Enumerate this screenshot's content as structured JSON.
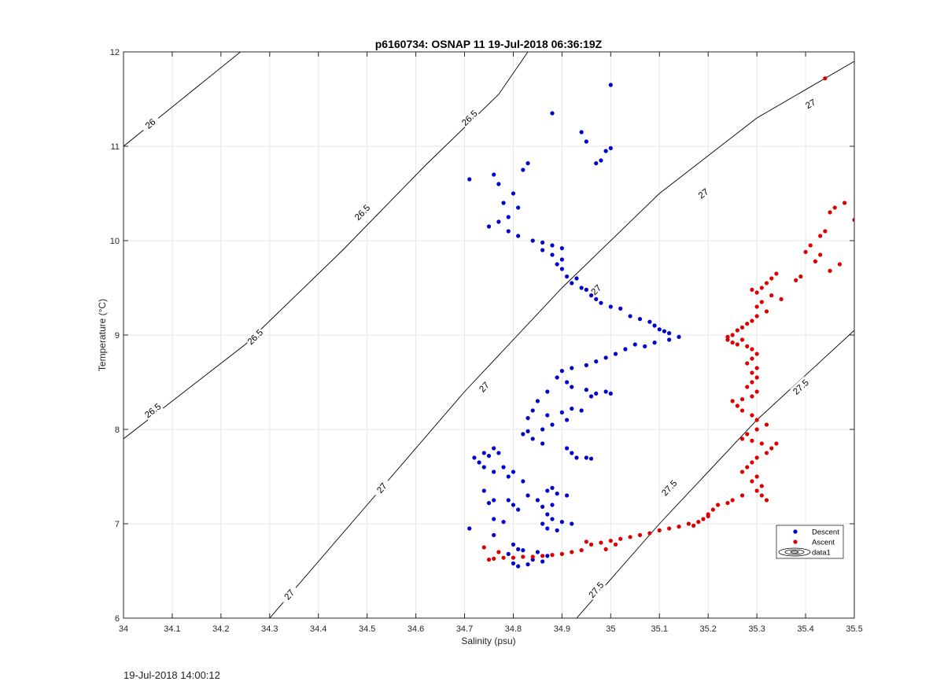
{
  "footer": {
    "timestamp": "19-Jul-2018 14:00:12"
  },
  "chart_data": {
    "type": "scatter",
    "title": "p6160734: OSNAP 11 19-Jul-2018 06:36:19Z",
    "xlabel": "Salinity (psu)",
    "ylabel": "Temperature (°C)",
    "xlim": [
      34,
      35.5
    ],
    "ylim": [
      6,
      12
    ],
    "xticks": [
      34,
      34.1,
      34.2,
      34.3,
      34.4,
      34.5,
      34.6,
      34.7,
      34.8,
      34.9,
      35,
      35.1,
      35.2,
      35.3,
      35.4,
      35.5
    ],
    "xtick_labels": [
      "34",
      "34.1",
      "34.2",
      "34.3",
      "34.4",
      "34.5",
      "34.6",
      "34.7",
      "34.8",
      "34.9",
      "35",
      "35.1",
      "35.2",
      "35.3",
      "35.4",
      "35.5"
    ],
    "yticks": [
      6,
      7,
      8,
      9,
      10,
      11,
      12
    ],
    "ytick_labels": [
      "6",
      "7",
      "8",
      "9",
      "10",
      "11",
      "12"
    ],
    "grid": true,
    "legend": {
      "placement": "lower-right",
      "entries": [
        "Descent",
        "Ascent",
        "data1"
      ]
    },
    "contours": [
      {
        "level": "26",
        "points": [
          [
            34.0,
            11.0
          ],
          [
            34.24,
            12.0
          ]
        ],
        "labels": [
          {
            "x": 34.055,
            "y": 11.24
          }
        ]
      },
      {
        "level": "26.5",
        "points": [
          [
            34.0,
            7.9
          ],
          [
            34.25,
            8.9
          ],
          [
            34.45,
            9.9
          ],
          [
            34.62,
            10.8
          ],
          [
            34.77,
            11.55
          ],
          [
            34.83,
            12.0
          ]
        ],
        "labels": [
          {
            "x": 34.06,
            "y": 8.2
          },
          {
            "x": 34.27,
            "y": 8.98
          },
          {
            "x": 34.49,
            "y": 10.3
          },
          {
            "x": 34.71,
            "y": 11.3
          }
        ]
      },
      {
        "level": "27",
        "points": [
          [
            34.3,
            6.0
          ],
          [
            34.5,
            7.2
          ],
          [
            34.7,
            8.4
          ],
          [
            34.9,
            9.5
          ],
          [
            35.1,
            10.5
          ],
          [
            35.3,
            11.3
          ],
          [
            35.5,
            11.9
          ]
        ],
        "labels": [
          {
            "x": 34.34,
            "y": 6.25
          },
          {
            "x": 34.53,
            "y": 7.38
          },
          {
            "x": 34.74,
            "y": 8.45
          },
          {
            "x": 34.97,
            "y": 9.48
          },
          {
            "x": 35.19,
            "y": 10.5
          },
          {
            "x": 35.41,
            "y": 11.45
          }
        ]
      },
      {
        "level": "27.5",
        "points": [
          [
            34.93,
            6.0
          ],
          [
            35.1,
            7.0
          ],
          [
            35.3,
            8.1
          ],
          [
            35.5,
            9.05
          ]
        ],
        "labels": [
          {
            "x": 34.97,
            "y": 6.3
          },
          {
            "x": 35.12,
            "y": 7.38
          },
          {
            "x": 35.39,
            "y": 8.45
          }
        ]
      }
    ],
    "series": [
      {
        "name": "Descent",
        "color": "#0000cc",
        "points": [
          [
            34.88,
            11.35
          ],
          [
            35.0,
            11.65
          ],
          [
            34.94,
            11.15
          ],
          [
            34.95,
            11.05
          ],
          [
            34.97,
            10.82
          ],
          [
            34.98,
            10.85
          ],
          [
            34.99,
            10.95
          ],
          [
            35.0,
            10.98
          ],
          [
            34.71,
            10.65
          ],
          [
            34.76,
            10.7
          ],
          [
            34.82,
            10.75
          ],
          [
            34.83,
            10.82
          ],
          [
            34.77,
            10.6
          ],
          [
            34.8,
            10.5
          ],
          [
            34.78,
            10.4
          ],
          [
            34.81,
            10.35
          ],
          [
            34.79,
            10.25
          ],
          [
            34.75,
            10.15
          ],
          [
            34.77,
            10.2
          ],
          [
            34.79,
            10.1
          ],
          [
            34.81,
            10.05
          ],
          [
            34.84,
            10.0
          ],
          [
            34.86,
            9.98
          ],
          [
            34.88,
            9.95
          ],
          [
            34.9,
            9.92
          ],
          [
            34.86,
            9.9
          ],
          [
            34.88,
            9.85
          ],
          [
            34.9,
            9.8
          ],
          [
            34.89,
            9.75
          ],
          [
            34.9,
            9.7
          ],
          [
            34.91,
            9.62
          ],
          [
            34.93,
            9.6
          ],
          [
            34.92,
            9.55
          ],
          [
            34.94,
            9.5
          ],
          [
            34.95,
            9.48
          ],
          [
            34.96,
            9.42
          ],
          [
            34.97,
            9.38
          ],
          [
            34.98,
            9.34
          ],
          [
            35.0,
            9.3
          ],
          [
            35.02,
            9.28
          ],
          [
            35.04,
            9.2
          ],
          [
            35.06,
            9.17
          ],
          [
            35.08,
            9.14
          ],
          [
            35.09,
            9.1
          ],
          [
            35.1,
            9.06
          ],
          [
            35.11,
            9.04
          ],
          [
            35.12,
            9.02
          ],
          [
            35.14,
            8.98
          ],
          [
            35.12,
            8.95
          ],
          [
            35.09,
            8.92
          ],
          [
            35.07,
            8.88
          ],
          [
            35.05,
            8.9
          ],
          [
            35.03,
            8.85
          ],
          [
            35.01,
            8.8
          ],
          [
            34.99,
            8.76
          ],
          [
            34.97,
            8.72
          ],
          [
            34.95,
            8.68
          ],
          [
            34.92,
            8.65
          ],
          [
            34.9,
            8.62
          ],
          [
            34.89,
            8.55
          ],
          [
            34.91,
            8.5
          ],
          [
            34.92,
            8.45
          ],
          [
            34.95,
            8.42
          ],
          [
            34.96,
            8.35
          ],
          [
            34.97,
            8.38
          ],
          [
            34.99,
            8.4
          ],
          [
            35.0,
            8.38
          ],
          [
            34.87,
            8.4
          ],
          [
            34.85,
            8.3
          ],
          [
            34.84,
            8.2
          ],
          [
            34.83,
            8.12
          ],
          [
            34.87,
            8.15
          ],
          [
            34.9,
            8.18
          ],
          [
            34.92,
            8.22
          ],
          [
            34.94,
            8.2
          ],
          [
            34.91,
            8.1
          ],
          [
            34.88,
            8.05
          ],
          [
            34.86,
            8.0
          ],
          [
            34.83,
            7.98
          ],
          [
            34.82,
            7.95
          ],
          [
            34.84,
            7.9
          ],
          [
            34.86,
            7.85
          ],
          [
            34.92,
            7.75
          ],
          [
            34.91,
            7.8
          ],
          [
            34.93,
            7.7
          ],
          [
            34.95,
            7.7
          ],
          [
            34.96,
            7.69
          ],
          [
            34.74,
            7.75
          ],
          [
            34.75,
            7.72
          ],
          [
            34.73,
            7.65
          ],
          [
            34.74,
            7.6
          ],
          [
            34.72,
            7.7
          ],
          [
            34.76,
            7.8
          ],
          [
            34.77,
            7.75
          ],
          [
            34.78,
            7.6
          ],
          [
            34.8,
            7.55
          ],
          [
            34.79,
            7.5
          ],
          [
            34.76,
            7.55
          ],
          [
            34.82,
            7.45
          ],
          [
            34.74,
            7.35
          ],
          [
            34.76,
            7.25
          ],
          [
            34.75,
            7.22
          ],
          [
            34.83,
            7.3
          ],
          [
            34.87,
            7.35
          ],
          [
            34.88,
            7.38
          ],
          [
            34.89,
            7.32
          ],
          [
            34.91,
            7.3
          ],
          [
            34.79,
            7.25
          ],
          [
            34.8,
            7.2
          ],
          [
            34.85,
            7.25
          ],
          [
            34.81,
            7.15
          ],
          [
            34.86,
            7.18
          ],
          [
            34.88,
            7.2
          ],
          [
            34.87,
            7.1
          ],
          [
            34.76,
            7.05
          ],
          [
            34.78,
            7.02
          ],
          [
            34.86,
            7.0
          ],
          [
            34.88,
            7.05
          ],
          [
            34.9,
            7.02
          ],
          [
            34.92,
            7.0
          ],
          [
            34.87,
            6.95
          ],
          [
            34.89,
            6.93
          ],
          [
            34.71,
            6.95
          ],
          [
            34.76,
            6.88
          ],
          [
            34.8,
            6.78
          ],
          [
            34.81,
            6.73
          ],
          [
            34.79,
            6.68
          ],
          [
            34.82,
            6.72
          ],
          [
            34.85,
            6.7
          ],
          [
            34.87,
            6.66
          ],
          [
            34.84,
            6.62
          ],
          [
            34.86,
            6.6
          ],
          [
            34.8,
            6.58
          ],
          [
            34.83,
            6.57
          ],
          [
            34.81,
            6.55
          ]
        ]
      },
      {
        "name": "Ascent",
        "color": "#dd0000",
        "points": [
          [
            35.44,
            11.72
          ],
          [
            35.48,
            10.4
          ],
          [
            35.46,
            10.35
          ],
          [
            35.45,
            10.3
          ],
          [
            35.5,
            10.22
          ],
          [
            35.44,
            10.1
          ],
          [
            35.43,
            10.05
          ],
          [
            35.41,
            9.95
          ],
          [
            35.4,
            9.88
          ],
          [
            35.43,
            9.85
          ],
          [
            35.42,
            9.78
          ],
          [
            35.47,
            9.75
          ],
          [
            35.45,
            9.68
          ],
          [
            35.39,
            9.62
          ],
          [
            35.38,
            9.58
          ],
          [
            35.34,
            9.65
          ],
          [
            35.33,
            9.6
          ],
          [
            35.32,
            9.55
          ],
          [
            35.31,
            9.5
          ],
          [
            35.29,
            9.48
          ],
          [
            35.3,
            9.45
          ],
          [
            35.33,
            9.42
          ],
          [
            35.35,
            9.38
          ],
          [
            35.31,
            9.35
          ],
          [
            35.3,
            9.3
          ],
          [
            35.32,
            9.25
          ],
          [
            35.3,
            9.2
          ],
          [
            35.29,
            9.15
          ],
          [
            35.28,
            9.12
          ],
          [
            35.27,
            9.08
          ],
          [
            35.26,
            9.05
          ],
          [
            35.25,
            9.0
          ],
          [
            35.24,
            8.98
          ],
          [
            35.24,
            8.95
          ],
          [
            35.25,
            8.92
          ],
          [
            35.26,
            8.9
          ],
          [
            35.27,
            8.95
          ],
          [
            35.28,
            8.88
          ],
          [
            35.29,
            8.85
          ],
          [
            35.3,
            8.8
          ],
          [
            35.29,
            8.75
          ],
          [
            35.28,
            8.7
          ],
          [
            35.3,
            8.65
          ],
          [
            35.29,
            8.6
          ],
          [
            35.3,
            8.55
          ],
          [
            35.29,
            8.5
          ],
          [
            35.28,
            8.45
          ],
          [
            35.3,
            8.4
          ],
          [
            35.29,
            8.35
          ],
          [
            35.27,
            8.32
          ],
          [
            35.25,
            8.3
          ],
          [
            35.26,
            8.25
          ],
          [
            35.27,
            8.2
          ],
          [
            35.29,
            8.15
          ],
          [
            35.3,
            8.1
          ],
          [
            35.32,
            8.05
          ],
          [
            35.3,
            8.0
          ],
          [
            35.28,
            7.95
          ],
          [
            35.27,
            7.9
          ],
          [
            35.29,
            7.88
          ],
          [
            35.31,
            7.85
          ],
          [
            35.34,
            7.85
          ],
          [
            35.33,
            7.8
          ],
          [
            35.32,
            7.75
          ],
          [
            35.3,
            7.7
          ],
          [
            35.29,
            7.65
          ],
          [
            35.28,
            7.6
          ],
          [
            35.27,
            7.55
          ],
          [
            35.3,
            7.5
          ],
          [
            35.29,
            7.45
          ],
          [
            35.31,
            7.4
          ],
          [
            35.3,
            7.35
          ],
          [
            35.31,
            7.3
          ],
          [
            35.32,
            7.25
          ],
          [
            35.27,
            7.3
          ],
          [
            35.25,
            7.25
          ],
          [
            35.24,
            7.22
          ],
          [
            35.22,
            7.2
          ],
          [
            35.21,
            7.15
          ],
          [
            35.2,
            7.1
          ],
          [
            35.19,
            7.05
          ],
          [
            35.18,
            7.02
          ],
          [
            35.16,
            7.0
          ],
          [
            35.14,
            6.97
          ],
          [
            35.12,
            6.95
          ],
          [
            35.1,
            6.93
          ],
          [
            35.08,
            6.9
          ],
          [
            35.06,
            6.88
          ],
          [
            35.04,
            6.86
          ],
          [
            35.02,
            6.84
          ],
          [
            35.0,
            6.82
          ],
          [
            34.98,
            6.8
          ],
          [
            34.96,
            6.78
          ],
          [
            34.94,
            6.72
          ],
          [
            34.92,
            6.7
          ],
          [
            34.9,
            6.68
          ],
          [
            34.88,
            6.67
          ],
          [
            34.86,
            6.66
          ],
          [
            34.84,
            6.65
          ],
          [
            34.82,
            6.65
          ],
          [
            34.8,
            6.64
          ],
          [
            34.78,
            6.64
          ],
          [
            34.76,
            6.63
          ],
          [
            34.75,
            6.62
          ],
          [
            34.74,
            6.75
          ],
          [
            34.77,
            6.7
          ],
          [
            35.2,
            7.08
          ],
          [
            35.17,
            6.98
          ],
          [
            34.99,
            6.73
          ],
          [
            35.01,
            6.78
          ],
          [
            34.95,
            6.81
          ]
        ]
      }
    ]
  }
}
